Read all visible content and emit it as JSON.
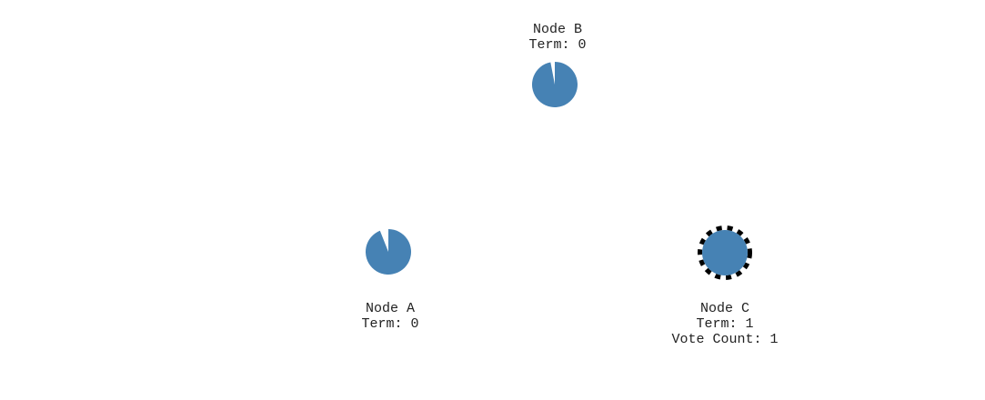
{
  "colors": {
    "node_fill": "#4682b4",
    "candidate_ring": "#000000",
    "label_text": "#222222",
    "background": "#ffffff"
  },
  "nodes": [
    {
      "id": "B",
      "name": "Node B",
      "term": "Term: 0",
      "vote_count": null,
      "state": "follower",
      "election_timeout_remaining": 0.97
    },
    {
      "id": "A",
      "name": "Node A",
      "term": "Term: 0",
      "vote_count": null,
      "state": "follower",
      "election_timeout_remaining": 0.94
    },
    {
      "id": "C",
      "name": "Node C",
      "term": "Term: 1",
      "vote_count": "Vote Count: 1",
      "state": "candidate",
      "election_timeout_remaining": 1.0
    }
  ]
}
